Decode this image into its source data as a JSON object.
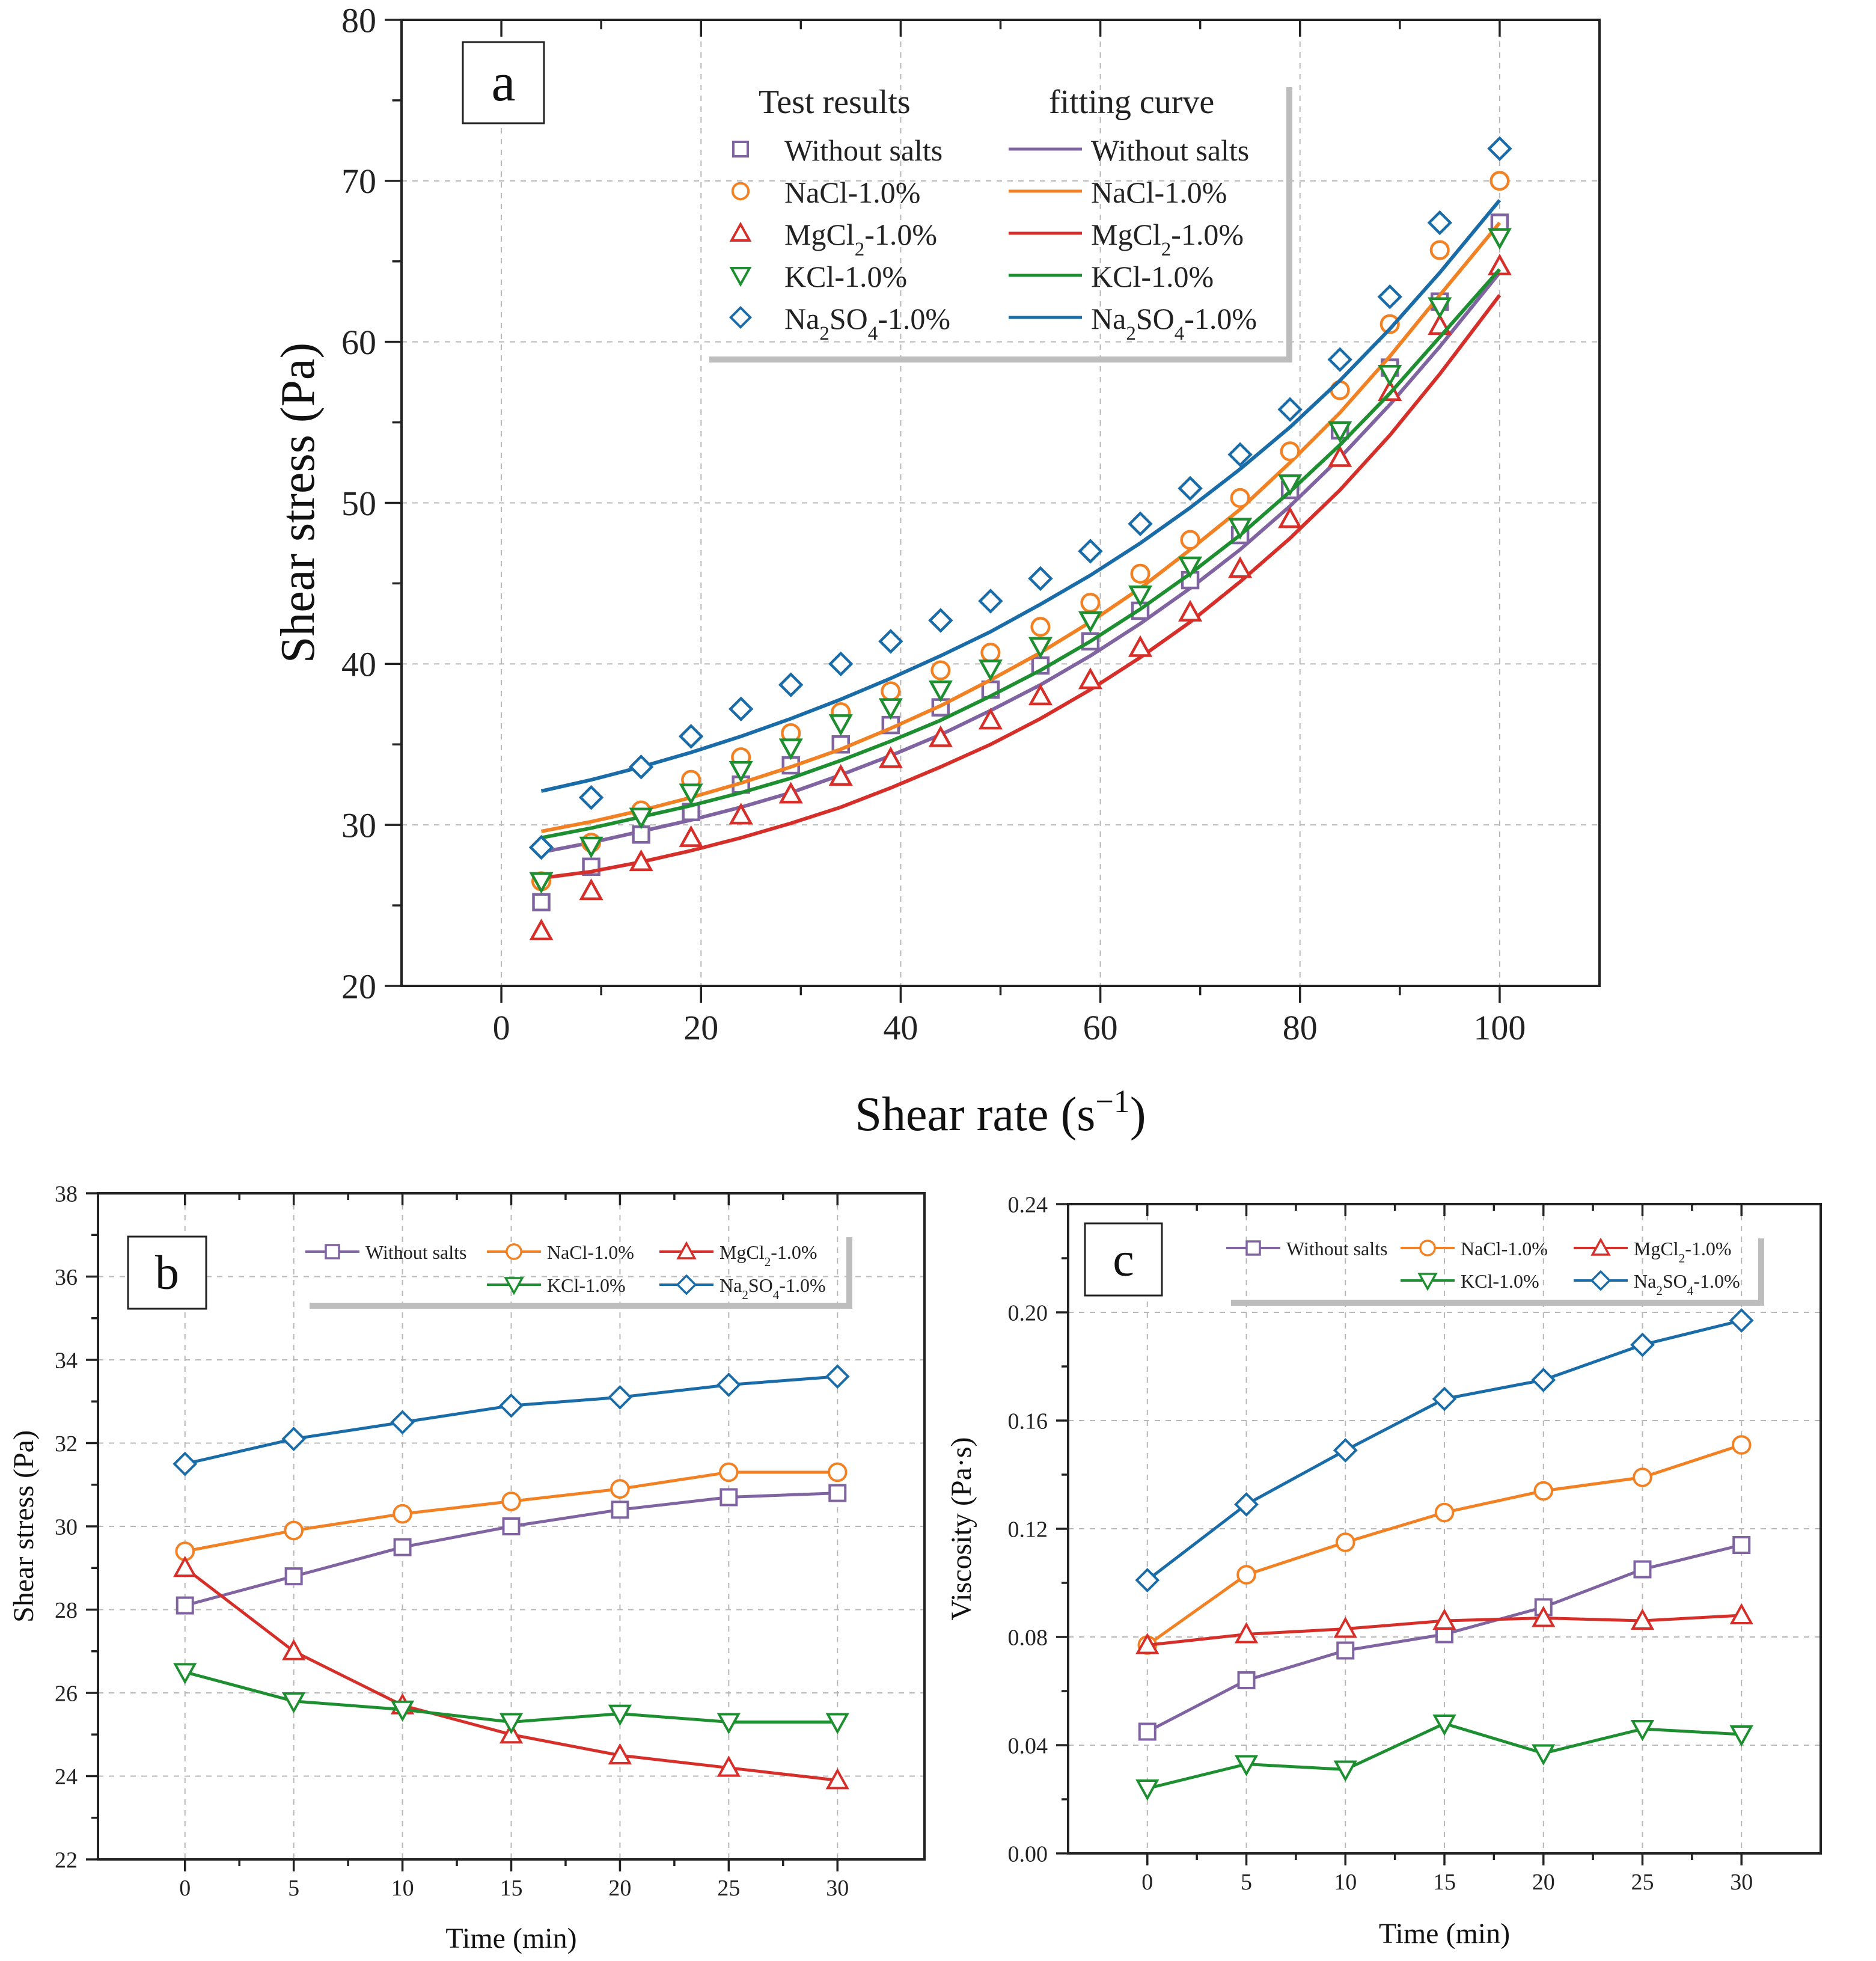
{
  "colors": {
    "without": "#8064a2",
    "nacl": "#f28123",
    "mgcl2": "#d62f2a",
    "kcl": "#1e8f30",
    "na2so4": "#1a6ca8"
  },
  "chart_data": [
    {
      "id": "a",
      "panel_label": "a",
      "type": "scatter",
      "title": "",
      "xlabel": "Shear rate (s−1)",
      "ylabel": "Shear stress (Pa)",
      "xlim": [
        -10,
        110
      ],
      "ylim": [
        20,
        80
      ],
      "xticks": [
        0,
        20,
        40,
        60,
        80,
        100
      ],
      "yticks": [
        20,
        30,
        40,
        50,
        60,
        70,
        80
      ],
      "legend": {
        "position": "top-right",
        "header_points": "Test results",
        "header_lines": "fitting curve"
      },
      "x": [
        4,
        9,
        14,
        19,
        24,
        29,
        34,
        39,
        44,
        49,
        54,
        59,
        64,
        69,
        74,
        79,
        84,
        89,
        94,
        100
      ],
      "series": [
        {
          "key": "without",
          "name": "Without salts",
          "marker": "square",
          "values": [
            25.2,
            27.4,
            29.4,
            30.8,
            32.5,
            33.7,
            35.0,
            36.2,
            37.3,
            38.4,
            39.9,
            41.4,
            43.3,
            45.2,
            48.0,
            50.8,
            54.5,
            58.4,
            62.5,
            67.4
          ],
          "fit": [
            28.3,
            28.9,
            29.6,
            30.3,
            31.1,
            32.0,
            33.1,
            34.3,
            35.6,
            37.1,
            38.7,
            40.5,
            42.5,
            44.7,
            47.1,
            49.8,
            52.8,
            56.1,
            59.7,
            64.3
          ]
        },
        {
          "key": "nacl",
          "name": "NaCl-1.0%",
          "marker": "circle",
          "values": [
            26.5,
            28.9,
            30.9,
            32.8,
            34.2,
            35.7,
            37.0,
            38.3,
            39.6,
            40.7,
            42.3,
            43.8,
            45.6,
            47.7,
            50.3,
            53.2,
            57.0,
            61.1,
            65.7,
            70.0
          ],
          "fit": [
            29.6,
            30.2,
            30.9,
            31.7,
            32.6,
            33.6,
            34.7,
            36.0,
            37.4,
            39.0,
            40.7,
            42.6,
            44.7,
            47.1,
            49.6,
            52.5,
            55.6,
            59.1,
            62.9,
            67.4
          ]
        },
        {
          "key": "mgcl2",
          "name": "MgCl₂-1.0%",
          "marker": "triangle-up",
          "values": [
            23.4,
            25.9,
            27.7,
            29.2,
            30.6,
            31.9,
            33.0,
            34.1,
            35.4,
            36.5,
            38.0,
            39.0,
            41.0,
            43.2,
            45.9,
            49.0,
            52.8,
            56.9,
            61.0,
            64.7
          ],
          "fit": [
            26.7,
            27.1,
            27.7,
            28.4,
            29.2,
            30.1,
            31.1,
            32.3,
            33.6,
            35.0,
            36.6,
            38.4,
            40.4,
            42.6,
            45.1,
            47.8,
            50.8,
            54.2,
            58.0,
            62.9
          ]
        },
        {
          "key": "kcl",
          "name": "KCl-1.0%",
          "marker": "triangle-down",
          "values": [
            26.5,
            28.7,
            30.5,
            32.0,
            33.4,
            34.8,
            36.3,
            37.3,
            38.4,
            39.7,
            41.1,
            42.7,
            44.3,
            46.1,
            48.5,
            51.2,
            54.5,
            58.0,
            62.2,
            66.5
          ],
          "fit": [
            29.2,
            29.8,
            30.5,
            31.2,
            32.0,
            32.9,
            34.0,
            35.2,
            36.5,
            38.0,
            39.6,
            41.4,
            43.4,
            45.6,
            48.0,
            50.7,
            53.6,
            56.8,
            60.3,
            64.5
          ]
        },
        {
          "key": "na2so4",
          "name": "Na₂SO₄-1.0%",
          "marker": "diamond",
          "values": [
            28.6,
            31.7,
            33.6,
            35.5,
            37.2,
            38.7,
            40.0,
            41.4,
            42.7,
            43.9,
            45.3,
            47.0,
            48.7,
            50.9,
            53.0,
            55.8,
            58.9,
            62.8,
            67.4,
            72.0
          ],
          "fit": [
            32.1,
            32.8,
            33.6,
            34.5,
            35.5,
            36.6,
            37.8,
            39.1,
            40.5,
            42.0,
            43.7,
            45.5,
            47.5,
            49.7,
            52.1,
            54.7,
            57.6,
            60.8,
            64.3,
            68.8
          ]
        }
      ]
    },
    {
      "id": "b",
      "panel_label": "b",
      "type": "line",
      "title": "",
      "xlabel": "Time (min)",
      "ylabel": "Shear stress (Pa)",
      "xlim": [
        -4,
        34
      ],
      "ylim": [
        22,
        38
      ],
      "xticks": [
        0,
        5,
        10,
        15,
        20,
        25,
        30
      ],
      "yticks": [
        22,
        24,
        26,
        28,
        30,
        32,
        34,
        36,
        38
      ],
      "legend": {
        "position": "top-right"
      },
      "x": [
        0,
        5,
        10,
        15,
        20,
        25,
        30
      ],
      "series": [
        {
          "key": "without",
          "name": "Without salts",
          "marker": "square",
          "values": [
            28.1,
            28.8,
            29.5,
            30.0,
            30.4,
            30.7,
            30.8
          ]
        },
        {
          "key": "nacl",
          "name": "NaCl-1.0%",
          "marker": "circle",
          "values": [
            29.4,
            29.9,
            30.3,
            30.6,
            30.9,
            31.3,
            31.3
          ]
        },
        {
          "key": "mgcl2",
          "name": "MgCl₂-1.0%",
          "marker": "triangle-up",
          "values": [
            29.0,
            27.0,
            25.7,
            25.0,
            24.5,
            24.2,
            23.9
          ]
        },
        {
          "key": "kcl",
          "name": "KCl-1.0%",
          "marker": "triangle-down",
          "values": [
            26.5,
            25.8,
            25.6,
            25.3,
            25.5,
            25.3,
            25.3
          ]
        },
        {
          "key": "na2so4",
          "name": "Na₂SO₄-1.0%",
          "marker": "diamond",
          "values": [
            31.5,
            32.1,
            32.5,
            32.9,
            33.1,
            33.4,
            33.6
          ]
        }
      ]
    },
    {
      "id": "c",
      "panel_label": "c",
      "type": "line",
      "title": "",
      "xlabel": "Time (min)",
      "ylabel": "Viscosity (Pa·s)",
      "xlim": [
        -4,
        34
      ],
      "ylim": [
        0.0,
        0.24
      ],
      "xticks": [
        0,
        5,
        10,
        15,
        20,
        25,
        30
      ],
      "yticks": [
        0.0,
        0.04,
        0.08,
        0.12,
        0.16,
        0.2,
        0.24
      ],
      "ytick_labels": [
        "0.00",
        "0.04",
        "0.08",
        "0.12",
        "0.16",
        "0.20",
        "0.24"
      ],
      "legend": {
        "position": "top-right"
      },
      "x": [
        0,
        5,
        10,
        15,
        20,
        25,
        30
      ],
      "series": [
        {
          "key": "without",
          "name": "Without salts",
          "marker": "square",
          "values": [
            0.045,
            0.064,
            0.075,
            0.081,
            0.091,
            0.105,
            0.114
          ]
        },
        {
          "key": "nacl",
          "name": "NaCl-1.0%",
          "marker": "circle",
          "values": [
            0.077,
            0.103,
            0.115,
            0.126,
            0.134,
            0.139,
            0.151
          ]
        },
        {
          "key": "mgcl2",
          "name": "MgCl₂-1.0%",
          "marker": "triangle-up",
          "values": [
            0.077,
            0.081,
            0.083,
            0.086,
            0.087,
            0.086,
            0.088
          ]
        },
        {
          "key": "kcl",
          "name": "KCl-1.0%",
          "marker": "triangle-down",
          "values": [
            0.024,
            0.033,
            0.031,
            0.048,
            0.037,
            0.046,
            0.044
          ]
        },
        {
          "key": "na2so4",
          "name": "Na₂SO₄-1.0%",
          "marker": "diamond",
          "values": [
            0.101,
            0.129,
            0.149,
            0.168,
            0.175,
            0.188,
            0.197
          ]
        }
      ]
    }
  ]
}
